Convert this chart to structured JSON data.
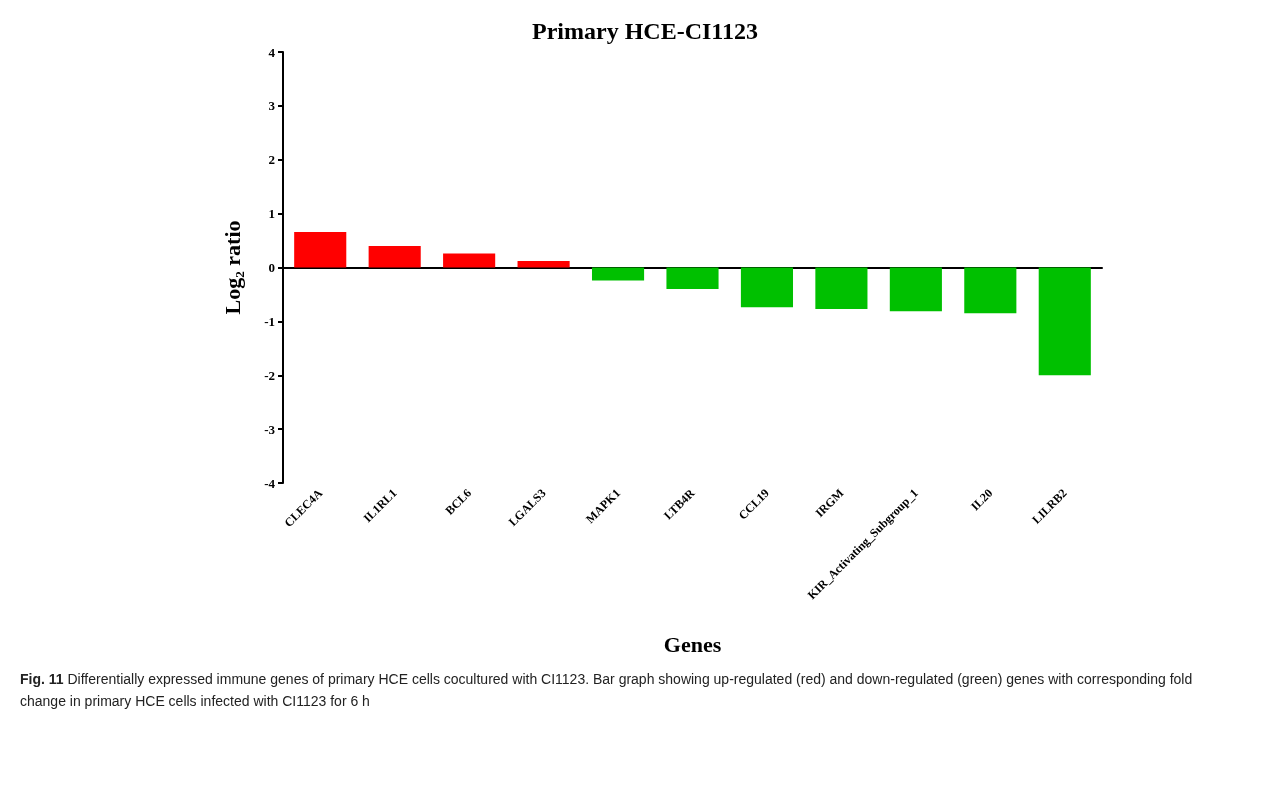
{
  "chart_data": {
    "type": "bar",
    "title": "Primary HCE-CI1123",
    "xlabel": "Genes",
    "ylabel": "Log₂ ratio",
    "categories": [
      "CLEC4A",
      "IL1RL1",
      "BCL6",
      "LGALS3",
      "MAPK1",
      "LTB4R",
      "CCL19",
      "IRGM",
      "KIR_Activating_Subgroup_1",
      "IL20",
      "LILRB2"
    ],
    "values": [
      0.66,
      0.4,
      0.26,
      0.12,
      -0.24,
      -0.4,
      -0.74,
      -0.77,
      -0.81,
      -0.85,
      -2.0
    ],
    "colors": [
      "#ff0000",
      "#ff0000",
      "#ff0000",
      "#ff0000",
      "#00c000",
      "#00c000",
      "#00c000",
      "#00c000",
      "#00c000",
      "#00c000",
      "#00c000"
    ],
    "ylim": [
      -4,
      4
    ],
    "yticks": [
      -4,
      -3,
      -2,
      -1,
      0,
      1,
      2,
      3,
      4
    ],
    "annotations": [
      "Fig. 11  Differentially expressed immune genes of primary HCE cells cocultured with CI1123. Bar graph showing up-regulated (red) and down-regulated (green) genes with corresponding fold change in primary HCE cells infected with CI1123 for 6 h"
    ]
  }
}
